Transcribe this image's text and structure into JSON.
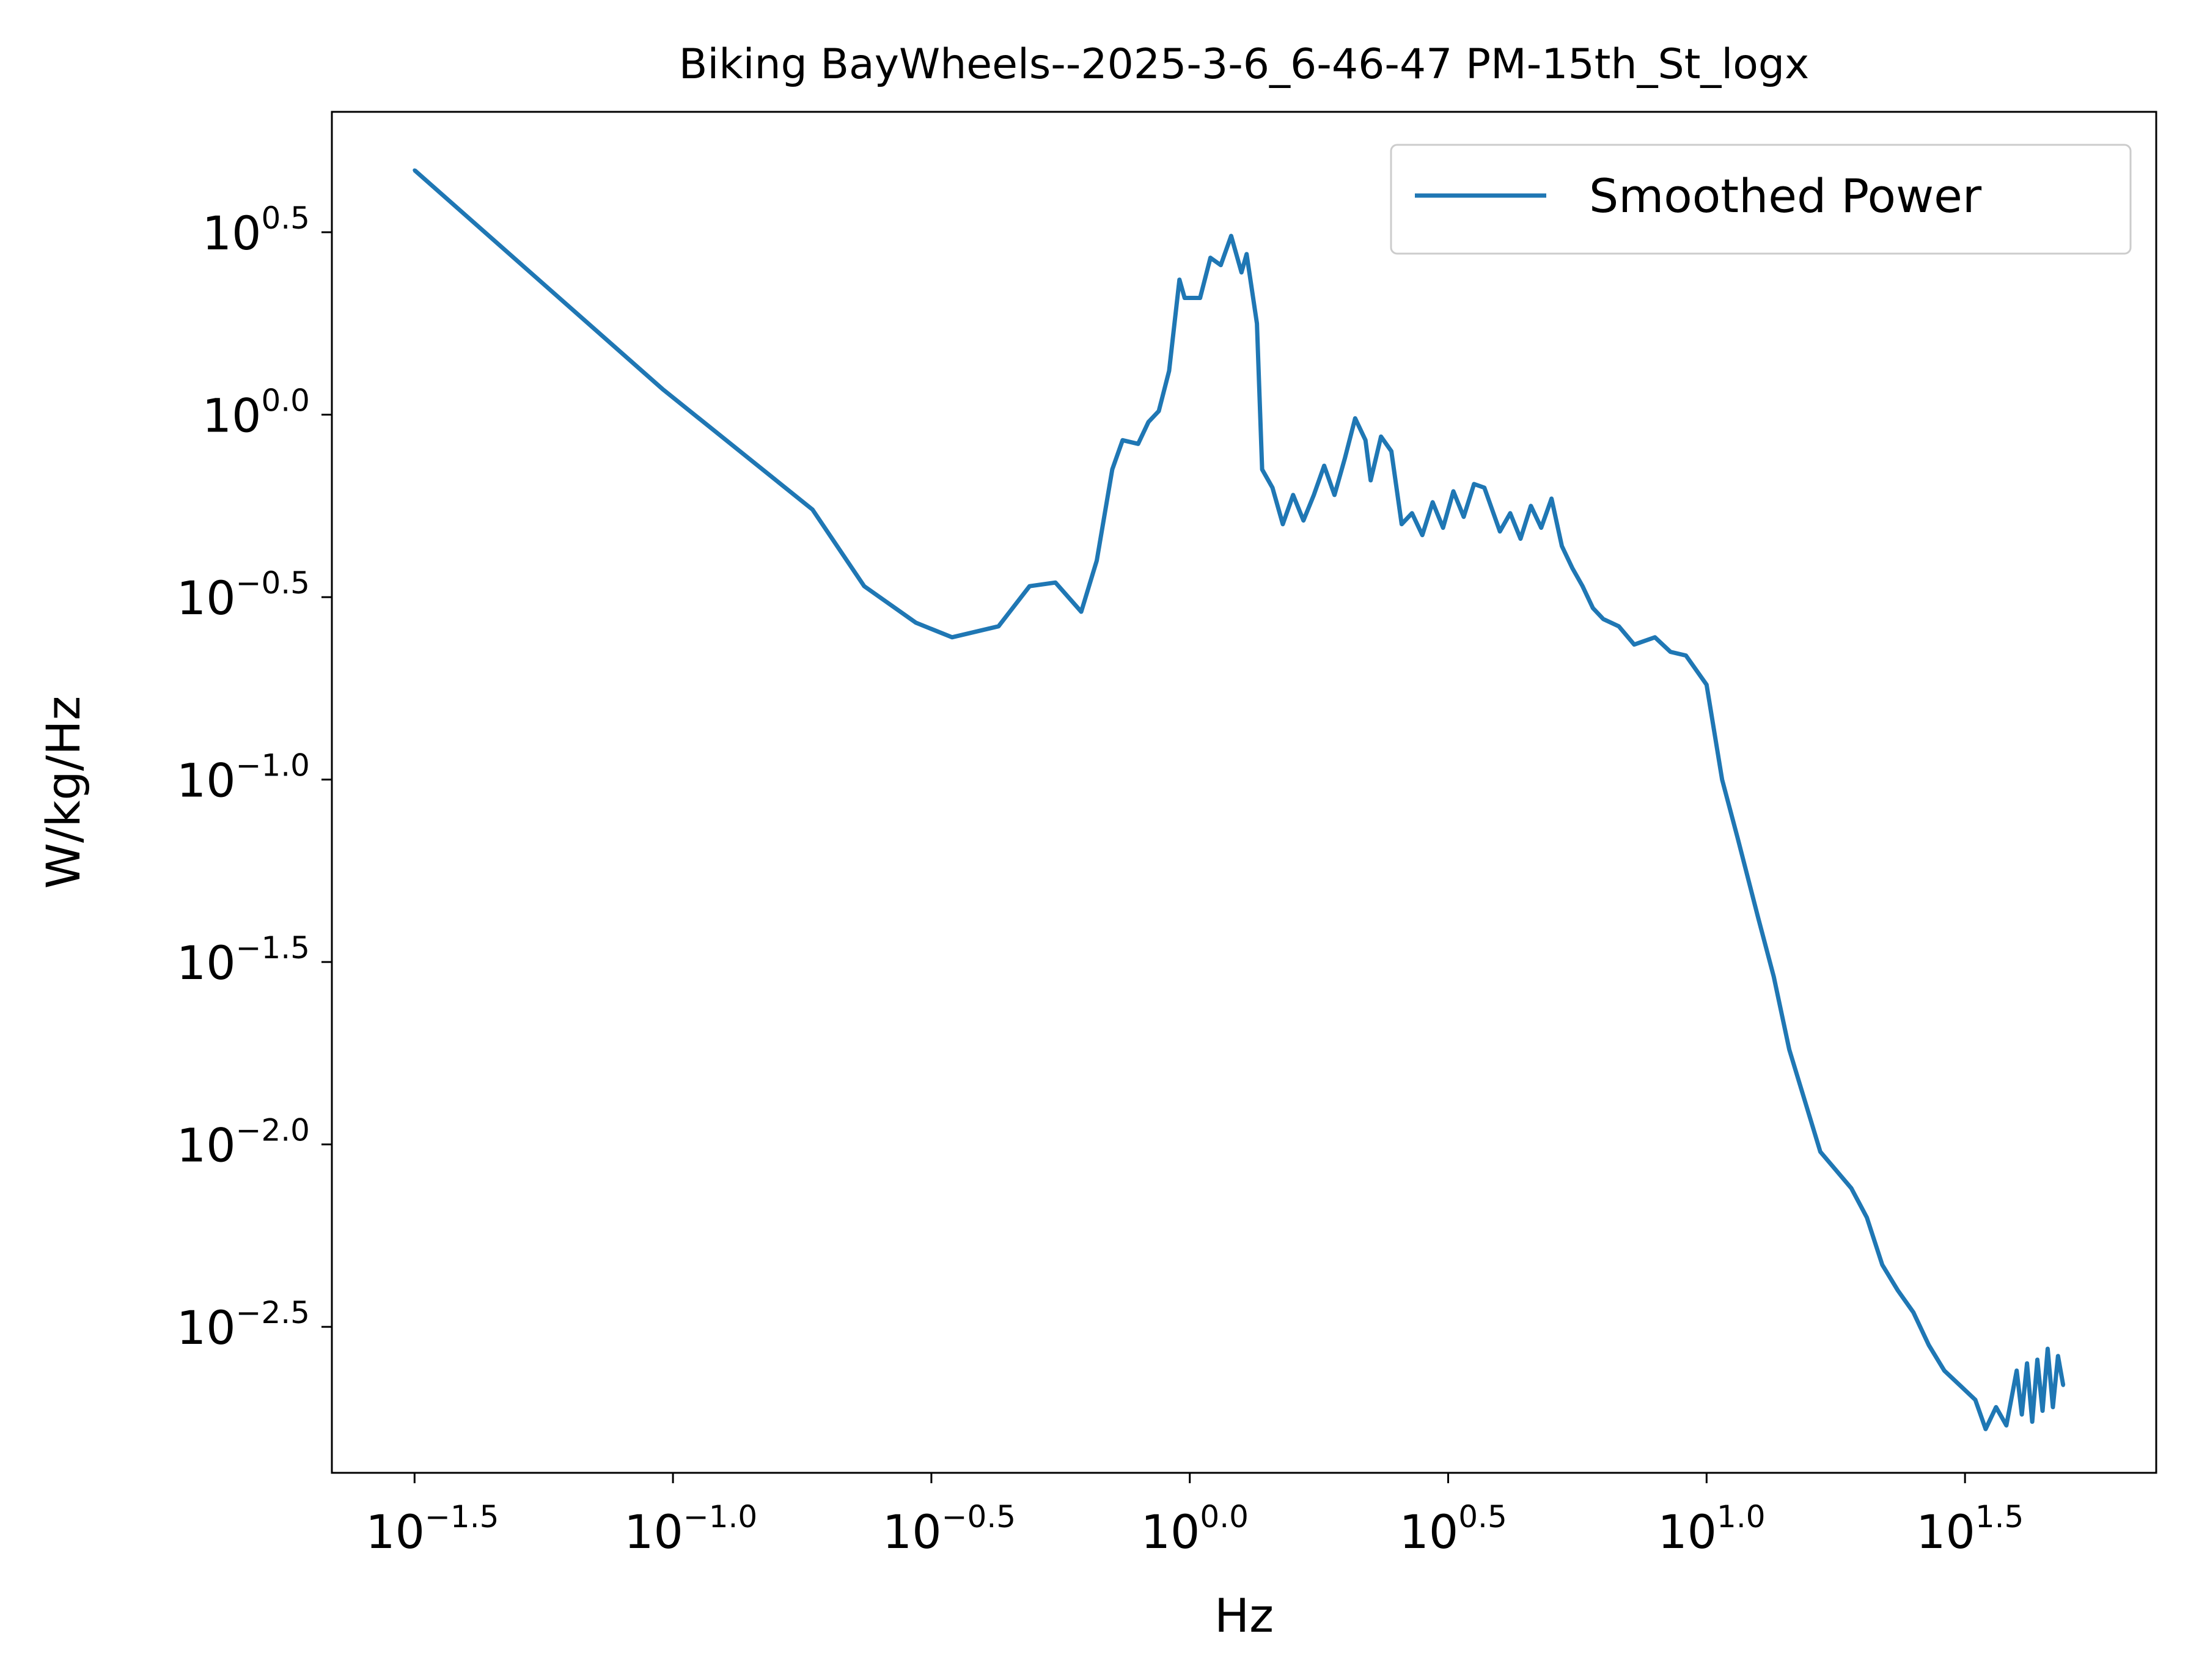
{
  "chart_data": {
    "type": "line",
    "title": "Biking BayWheels--2025-3-6_6-46-47 PM-15th_St_logx",
    "xlabel": "Hz",
    "ylabel": "W/kg/Hz",
    "xscale": "log",
    "yscale": "log",
    "xlim_log10": [
      -1.66,
      1.87
    ],
    "ylim_log10": [
      -2.9,
      0.83
    ],
    "x_ticks": [
      {
        "base": "10",
        "exp": "−1.5"
      },
      {
        "base": "10",
        "exp": "−1.0"
      },
      {
        "base": "10",
        "exp": "−0.5"
      },
      {
        "base": "10",
        "exp": "0.0"
      },
      {
        "base": "10",
        "exp": "0.5"
      },
      {
        "base": "10",
        "exp": "1.0"
      },
      {
        "base": "10",
        "exp": "1.5"
      }
    ],
    "y_ticks": [
      {
        "base": "10",
        "exp": "0.5"
      },
      {
        "base": "10",
        "exp": "0.0"
      },
      {
        "base": "10",
        "exp": "−0.5"
      },
      {
        "base": "10",
        "exp": "−1.0"
      },
      {
        "base": "10",
        "exp": "−1.5"
      },
      {
        "base": "10",
        "exp": "−2.0"
      },
      {
        "base": "10",
        "exp": "−2.5"
      }
    ],
    "legend": {
      "position": "top-right",
      "entries": [
        "Smoothed Power"
      ]
    },
    "grid": false,
    "series": [
      {
        "name": "Smoothed Power",
        "color": "#1f77b4",
        "x_log10": [
          -1.5,
          -1.02,
          -0.73,
          -0.63,
          -0.53,
          -0.46,
          -0.37,
          -0.31,
          -0.26,
          -0.21,
          -0.18,
          -0.15,
          -0.13,
          -0.1,
          -0.08,
          -0.06,
          -0.04,
          -0.02,
          -0.01,
          0.02,
          0.04,
          0.06,
          0.08,
          0.1,
          0.11,
          0.13,
          0.14,
          0.16,
          0.18,
          0.2,
          0.22,
          0.24,
          0.26,
          0.28,
          0.3,
          0.32,
          0.34,
          0.35,
          0.37,
          0.39,
          0.41,
          0.43,
          0.45,
          0.47,
          0.49,
          0.51,
          0.53,
          0.55,
          0.57,
          0.6,
          0.62,
          0.64,
          0.66,
          0.68,
          0.7,
          0.72,
          0.74,
          0.76,
          0.78,
          0.8,
          0.83,
          0.86,
          0.9,
          0.93,
          0.96,
          1.0,
          1.03,
          1.06,
          1.1,
          1.13,
          1.16,
          1.19,
          1.22,
          1.25,
          1.28,
          1.31,
          1.34,
          1.37,
          1.4,
          1.43,
          1.46,
          1.49,
          1.52,
          1.54,
          1.56,
          1.58,
          1.6,
          1.61,
          1.62,
          1.63,
          1.64,
          1.65,
          1.66,
          1.67,
          1.68,
          1.69
        ],
        "y_log10": [
          0.67,
          0.07,
          -0.26,
          -0.47,
          -0.57,
          -0.61,
          -0.58,
          -0.47,
          -0.46,
          -0.54,
          -0.4,
          -0.15,
          -0.07,
          -0.08,
          -0.02,
          0.01,
          0.12,
          0.37,
          0.32,
          0.32,
          0.43,
          0.41,
          0.49,
          0.39,
          0.44,
          0.25,
          -0.15,
          -0.2,
          -0.3,
          -0.22,
          -0.29,
          -0.22,
          -0.14,
          -0.22,
          -0.12,
          -0.01,
          -0.07,
          -0.18,
          -0.06,
          -0.1,
          -0.3,
          -0.27,
          -0.33,
          -0.24,
          -0.31,
          -0.21,
          -0.28,
          -0.19,
          -0.2,
          -0.32,
          -0.27,
          -0.34,
          -0.25,
          -0.31,
          -0.23,
          -0.36,
          -0.42,
          -0.47,
          -0.53,
          -0.56,
          -0.58,
          -0.63,
          -0.61,
          -0.65,
          -0.66,
          -0.74,
          -1.0,
          -1.16,
          -1.38,
          -1.54,
          -1.74,
          -1.88,
          -2.02,
          -2.07,
          -2.12,
          -2.2,
          -2.33,
          -2.4,
          -2.46,
          -2.55,
          -2.62,
          -2.66,
          -2.7,
          -2.78,
          -2.72,
          -2.77,
          -2.62,
          -2.74,
          -2.6,
          -2.76,
          -2.59,
          -2.73,
          -2.56,
          -2.72,
          -2.58,
          -2.66
        ]
      }
    ]
  }
}
